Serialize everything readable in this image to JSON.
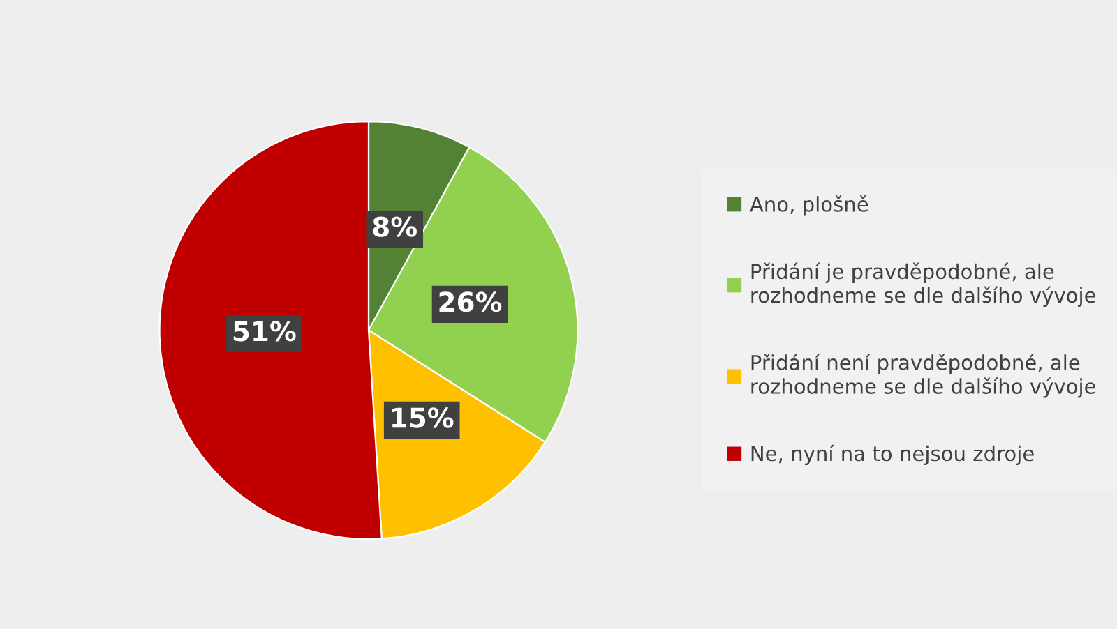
{
  "chart_data": {
    "type": "pie",
    "categories": [
      "Ano, plošně",
      "Přidání je pravděpodobné, ale rozhodneme se dle dalšího vývoje",
      "Přidání není pravděpodobné, ale rozhodneme se dle dalšího vývoje",
      "Ne, nyní na to nejsou zdroje"
    ],
    "values": [
      8,
      26,
      15,
      51
    ],
    "colors": [
      "#548235",
      "#92d050",
      "#ffc000",
      "#c00000"
    ],
    "value_labels": [
      "8%",
      "26%",
      "15%",
      "51%"
    ],
    "legend": "right"
  }
}
